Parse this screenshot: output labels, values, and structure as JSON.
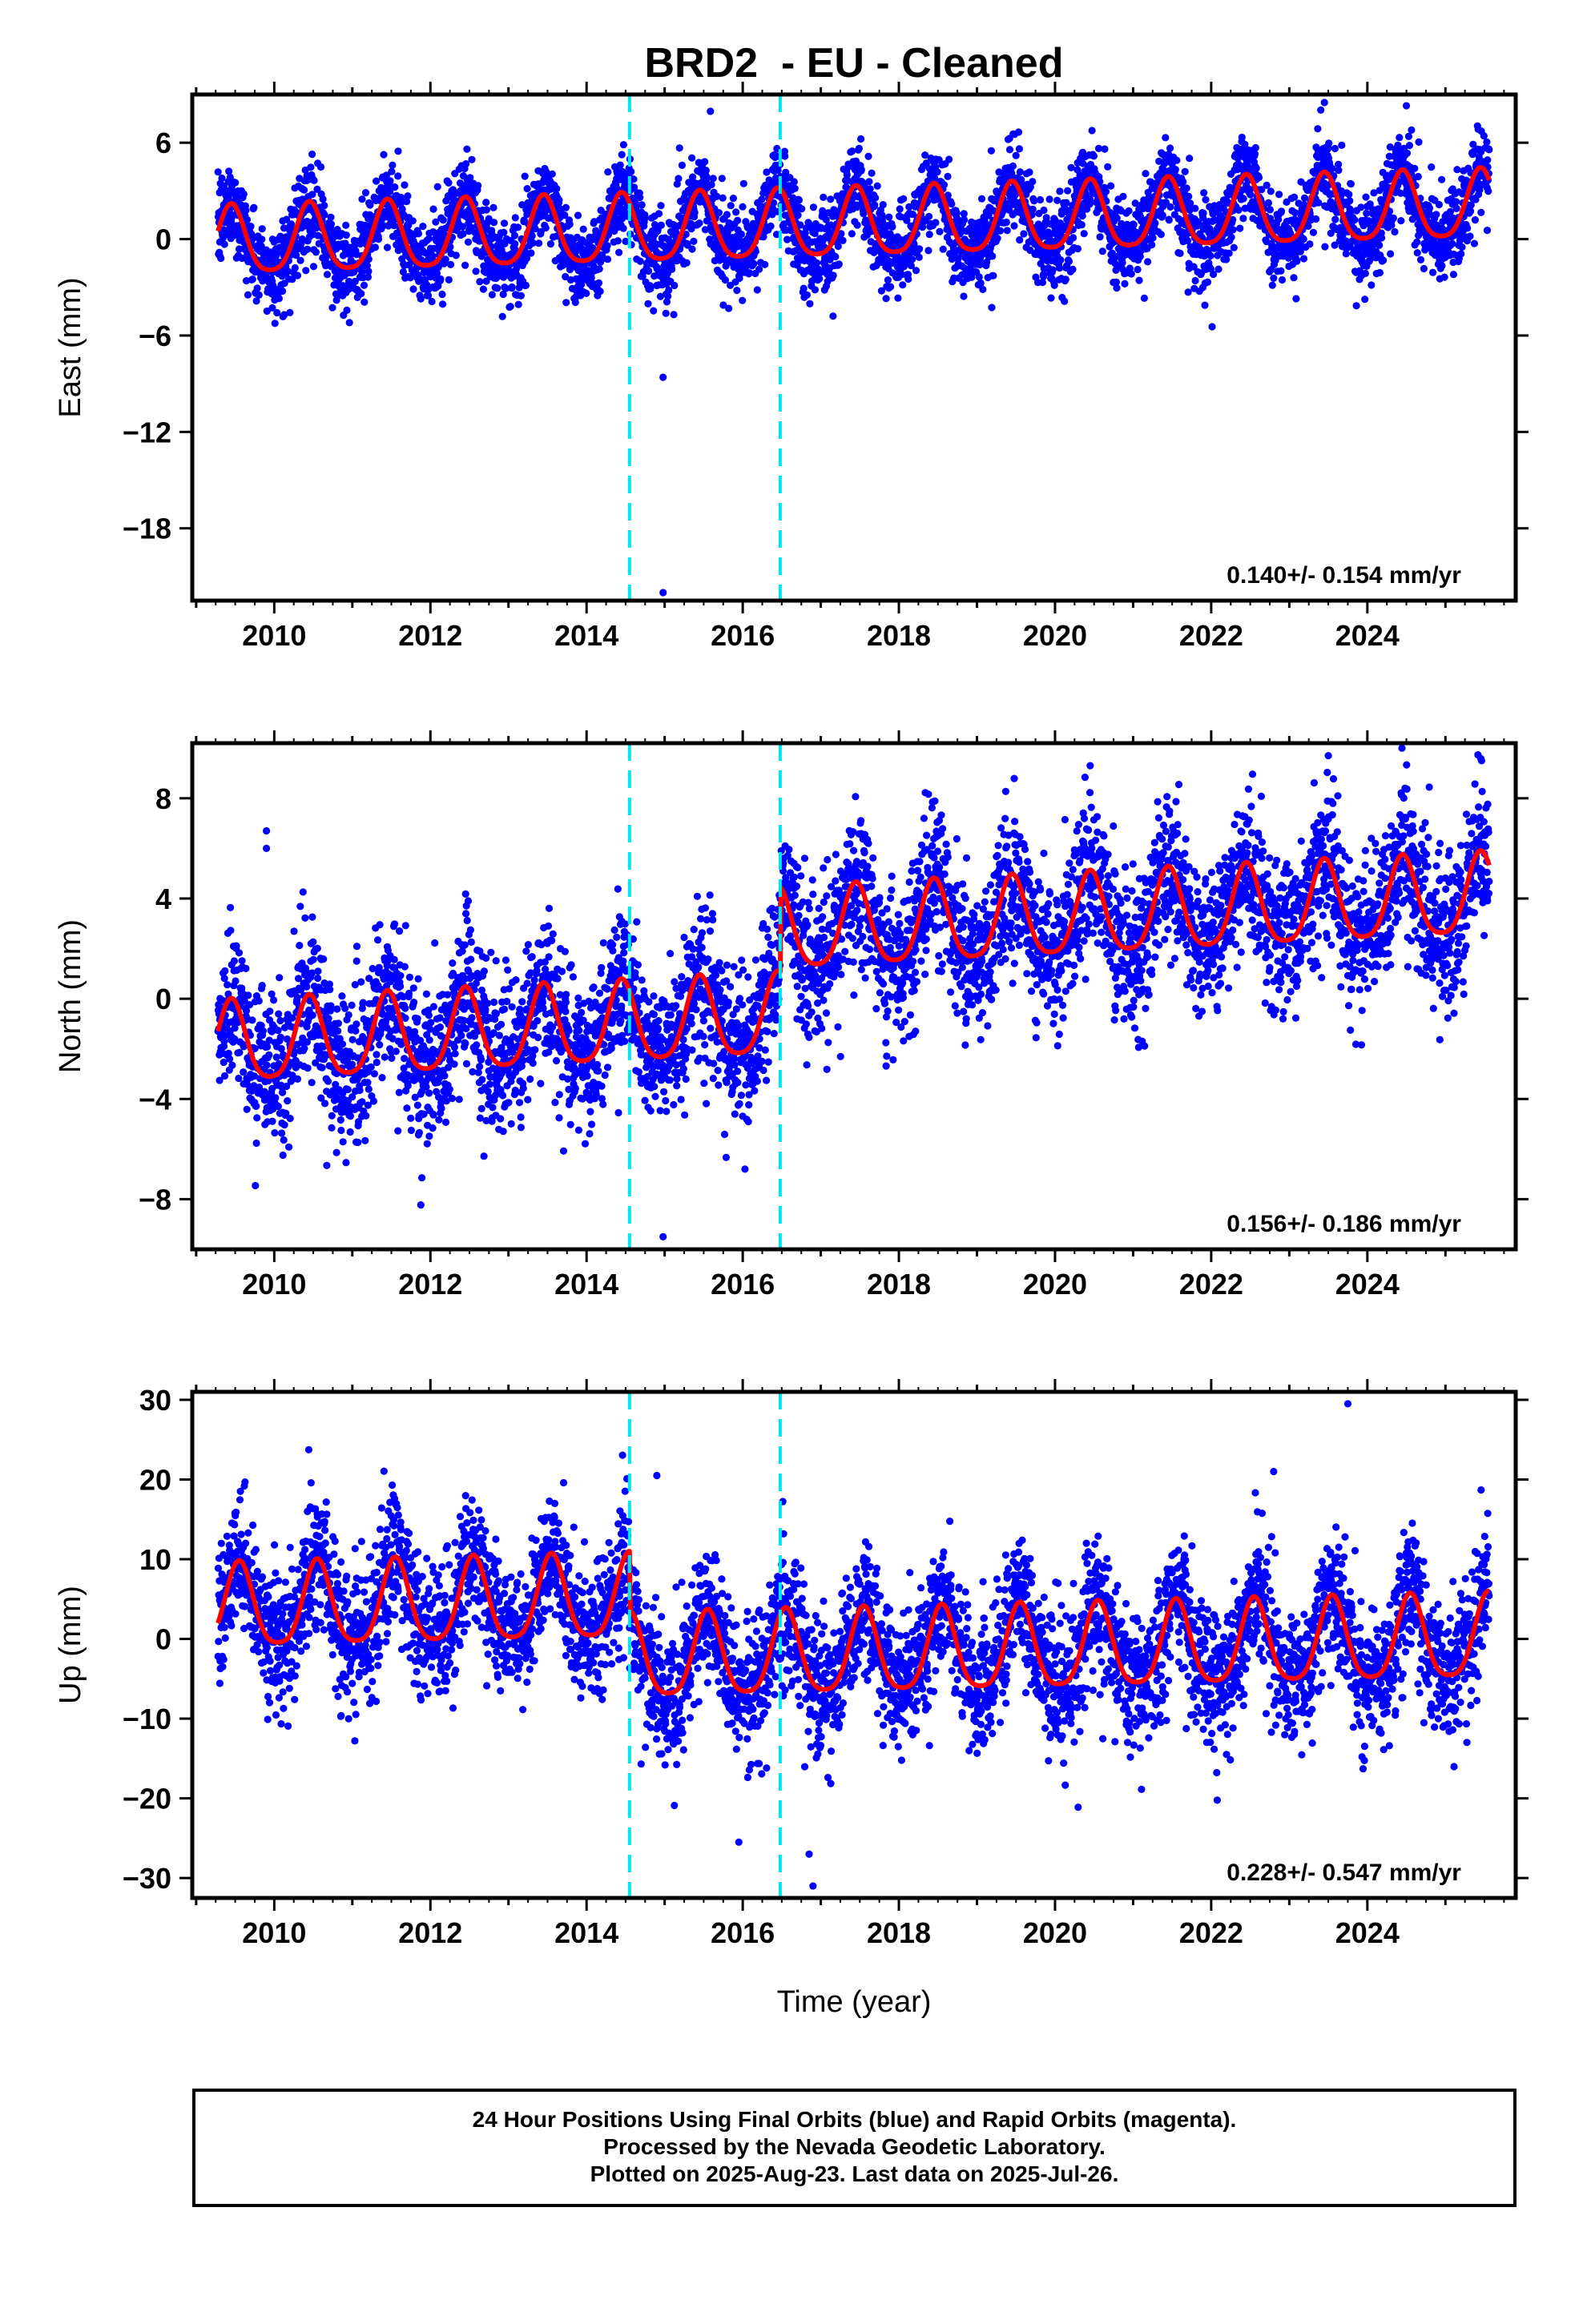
{
  "title": "BRD2  - EU - Cleaned",
  "xlabel": "Time (year)",
  "footer": {
    "line1": "24 Hour Positions Using Final Orbits (blue) and Rapid Orbits (magenta).",
    "line2": "Processed by the Nevada Geodetic Laboratory.",
    "line3": "Plotted on 2025-Aug-23. Last data on 2025-Jul-26."
  },
  "colors": {
    "points": "#0000ff",
    "model": "#ff0000",
    "breaks": "#00e5ee",
    "axis": "#000000"
  },
  "chart_data": [
    {
      "type": "scatter",
      "ylabel": "East (mm)",
      "xlim": [
        2008.95,
        2025.9
      ],
      "ylim": [
        -22.5,
        9
      ],
      "xticks": [
        2010,
        2012,
        2014,
        2016,
        2018,
        2020,
        2022,
        2024
      ],
      "yticks": [
        6,
        0,
        -6,
        -12,
        -18
      ],
      "breaks": [
        2014.55,
        2016.48
      ],
      "rate_label": "0.140+/- 0.154 mm/yr",
      "model": {
        "offset": -0.3,
        "trend": 0.14,
        "amplitude": 2.1,
        "peak_phase": 0.45,
        "amp2": 0.4,
        "steps": []
      },
      "noise": 1.3,
      "outliers": [
        [
          2014.98,
          -8.6
        ],
        [
          2014.98,
          -22.0
        ],
        [
          2019.4,
          6.2
        ],
        [
          2023.45,
          8.5
        ],
        [
          2024.5,
          8.3
        ]
      ],
      "series": [
        {
          "name": "24 hour positions"
        },
        {
          "name": "model"
        }
      ]
    },
    {
      "type": "scatter",
      "ylabel": "North (mm)",
      "xlim": [
        2008.95,
        2025.9
      ],
      "ylim": [
        -10,
        10.2
      ],
      "xticks": [
        2010,
        2012,
        2014,
        2016,
        2018,
        2020,
        2022,
        2024
      ],
      "yticks": [
        8,
        4,
        0,
        -4,
        -8
      ],
      "breaks": [
        2014.55,
        2016.48
      ],
      "rate_label": "0.156+/- 0.186 mm/yr",
      "model": {
        "offset": -1.9,
        "trend": 0.156,
        "amplitude": 1.6,
        "peak_phase": 0.45,
        "amp2": 0.3,
        "steps": [
          [
            2016.48,
            3.4
          ]
        ]
      },
      "noise": 1.5,
      "outliers": [
        [
          2009.9,
          6.7
        ],
        [
          2009.9,
          6.0
        ],
        [
          2014.98,
          -9.5
        ],
        [
          2020.45,
          9.3
        ],
        [
          2023.5,
          9.7
        ]
      ],
      "series": [
        {
          "name": "24 hour positions"
        },
        {
          "name": "model"
        }
      ]
    },
    {
      "type": "scatter",
      "ylabel": "Up (mm)",
      "xlim": [
        2008.95,
        2025.9
      ],
      "ylim": [
        -32.5,
        31
      ],
      "xticks": [
        2010,
        2012,
        2014,
        2016,
        2018,
        2020,
        2022,
        2024
      ],
      "yticks": [
        30,
        20,
        10,
        0,
        -10,
        -20,
        -30
      ],
      "breaks": [
        2014.55,
        2016.48
      ],
      "rate_label": "0.228+/- 0.547 mm/yr",
      "model": {
        "offset": 3.6,
        "trend": 0.228,
        "amplitude": 5.2,
        "peak_phase": 0.55,
        "amp2": 1.0,
        "steps": [
          [
            2014.55,
            -7.5
          ]
        ]
      },
      "noise": 4.2,
      "outliers": [
        [
          2015.95,
          -25.5
        ],
        [
          2016.9,
          -31.0
        ],
        [
          2016.85,
          -27.0
        ],
        [
          2023.75,
          29.5
        ],
        [
          2014.9,
          20.5
        ],
        [
          2022.8,
          21.0
        ]
      ],
      "series": [
        {
          "name": "24 hour positions"
        },
        {
          "name": "model"
        }
      ]
    }
  ]
}
